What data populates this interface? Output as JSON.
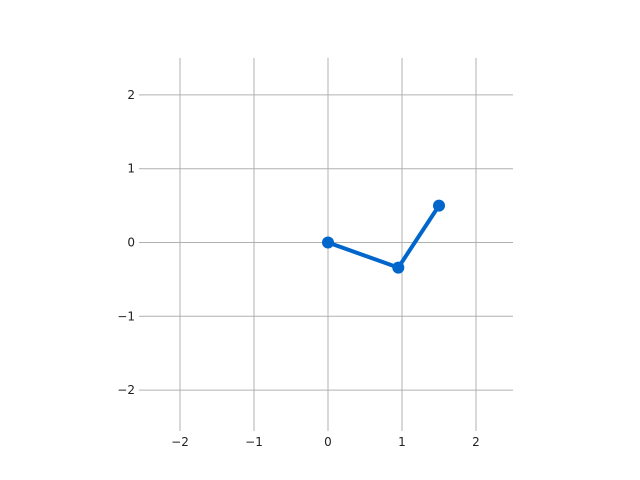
{
  "chart_data": {
    "type": "line",
    "title": "",
    "xlabel": "",
    "ylabel": "",
    "xlim": [
      -2.5,
      2.5
    ],
    "ylim": [
      -2.5,
      2.5
    ],
    "x_ticks": [
      -2,
      -1,
      0,
      1,
      2
    ],
    "y_ticks": [
      -2,
      -1,
      0,
      1,
      2
    ],
    "x_tick_labels": [
      "−2",
      "−1",
      "0",
      "1",
      "2"
    ],
    "y_tick_labels": [
      "−2",
      "−1",
      "0",
      "1",
      "2"
    ],
    "grid": true,
    "series": [
      {
        "x": [
          0,
          0.95,
          1.5
        ],
        "y": [
          0,
          -0.34,
          0.5
        ],
        "color": "#0066cc",
        "marker": "circle"
      }
    ],
    "colors": {
      "grid": "#b0b0b0",
      "text": "#222222",
      "line": "#0066cc"
    }
  }
}
